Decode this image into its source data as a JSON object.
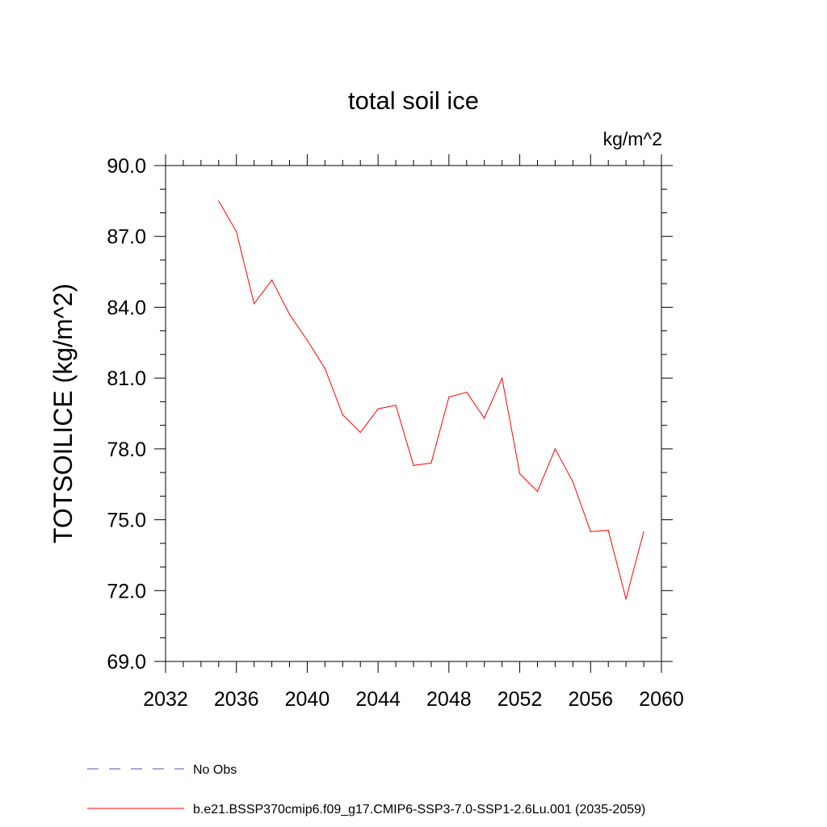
{
  "chart_data": {
    "type": "line",
    "title": "total soil ice",
    "units": "kg/m^2",
    "ylabel": "TOTSOILICE  (kg/m^2)",
    "xlabel": "",
    "xlim": [
      2032,
      2060
    ],
    "ylim": [
      69.0,
      90.0
    ],
    "x_ticks": [
      2032,
      2036,
      2040,
      2044,
      2048,
      2052,
      2056,
      2060
    ],
    "x_tick_labels": [
      "2032",
      "2036",
      "2040",
      "2044",
      "2048",
      "2052",
      "2056",
      "2060"
    ],
    "y_ticks": [
      69.0,
      72.0,
      75.0,
      78.0,
      81.0,
      84.0,
      87.0,
      90.0
    ],
    "y_tick_labels": [
      "69.0",
      "72.0",
      "75.0",
      "78.0",
      "81.0",
      "84.0",
      "87.0",
      "90.0"
    ],
    "grid": false,
    "legend_position": "bottom-left",
    "series": [
      {
        "name": "No Obs",
        "color": "#5a4fa8",
        "dash": "dashed",
        "x": [],
        "y": []
      },
      {
        "name": "b.e21.BSSP370cmip6.f09_g17.CMIP6-SSP3-7.0-SSP1-2.6Lu.001 (2035-2059)",
        "color": "#ff0000",
        "dash": "solid",
        "x": [
          2035,
          2036,
          2037,
          2038,
          2039,
          2040,
          2041,
          2042,
          2043,
          2044,
          2045,
          2046,
          2047,
          2048,
          2049,
          2050,
          2051,
          2052,
          2053,
          2054,
          2055,
          2056,
          2057,
          2058,
          2059
        ],
        "y": [
          88.5,
          87.2,
          84.15,
          85.15,
          83.7,
          82.6,
          81.4,
          79.45,
          78.7,
          79.7,
          79.85,
          77.3,
          77.4,
          80.2,
          80.4,
          79.3,
          81.0,
          76.95,
          76.2,
          78.0,
          76.6,
          74.5,
          74.55,
          71.65,
          74.5
        ]
      }
    ]
  }
}
